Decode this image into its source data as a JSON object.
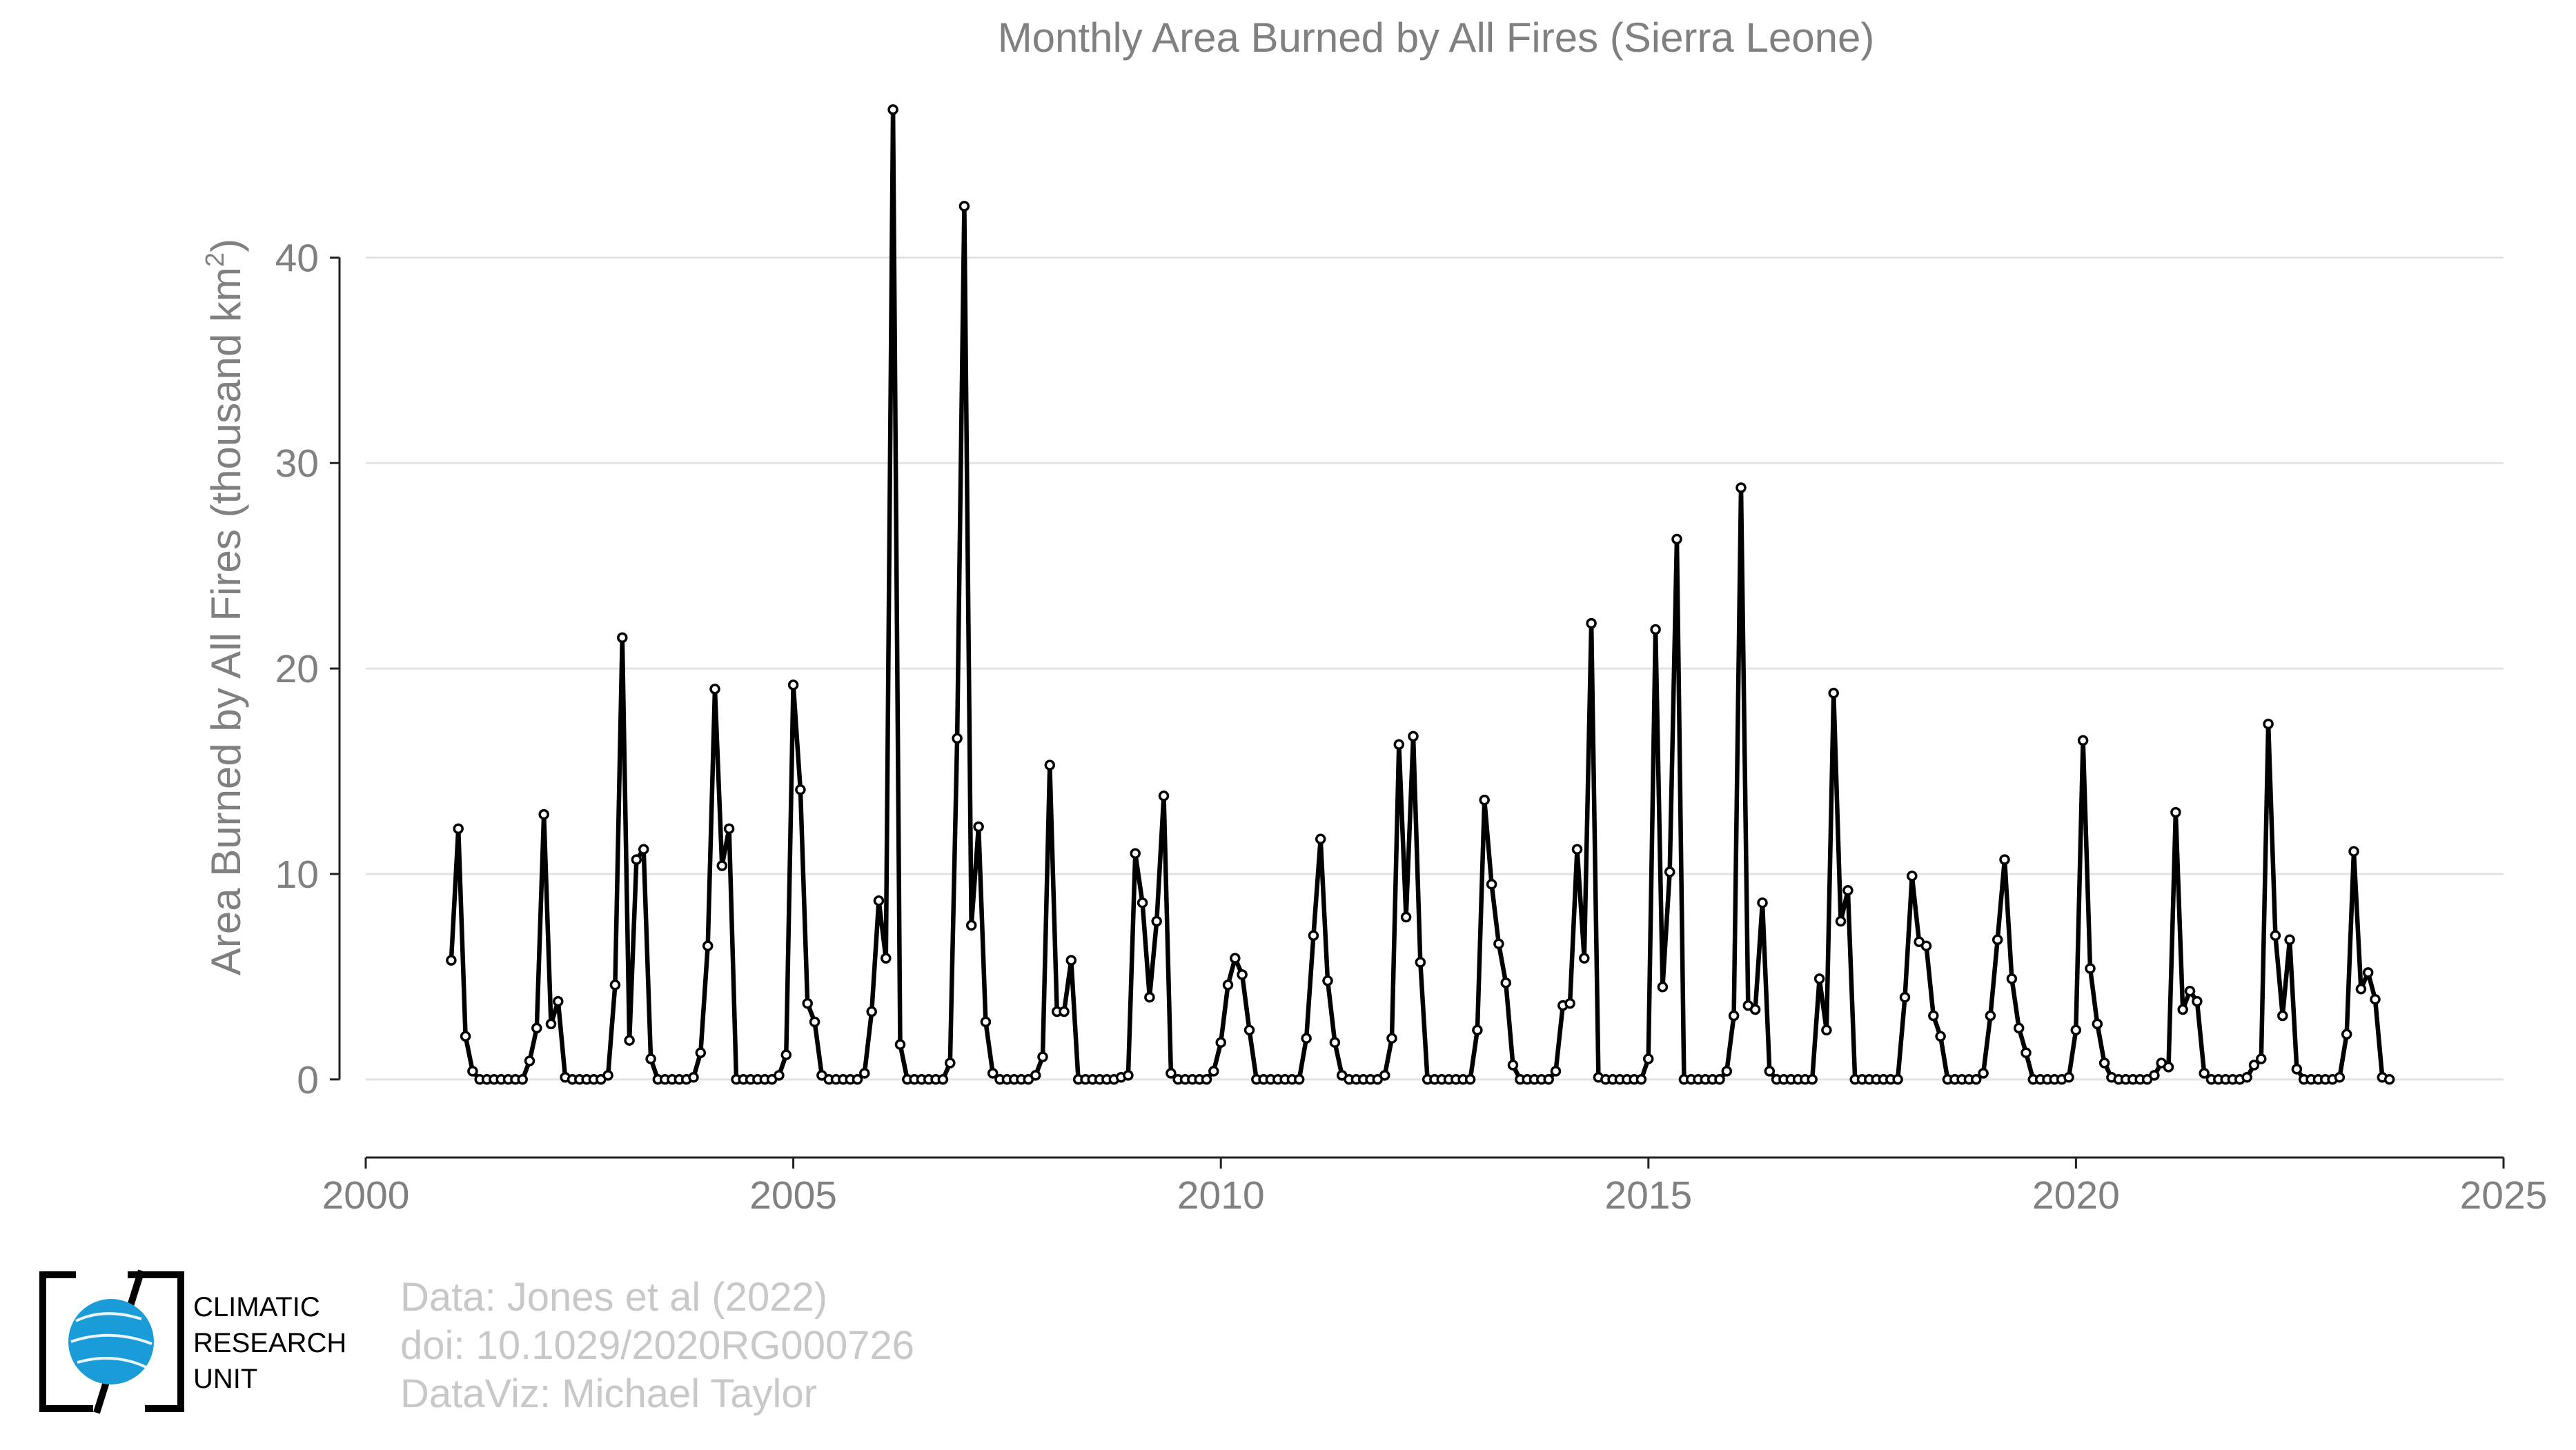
{
  "chart_data": {
    "type": "line",
    "title": "Monthly Area Burned by All Fires (Sierra Leone)",
    "ylabel": "Area Burned by All Fires (thousand km",
    "ylabel_superscript": "2",
    "ylabel_suffix": ")",
    "xlabel": "",
    "xlim": [
      2000,
      2025
    ],
    "ylim": [
      -3.8,
      47.5
    ],
    "x_ticks": [
      2000,
      2005,
      2010,
      2015,
      2020,
      2025
    ],
    "y_ticks": [
      0,
      10,
      20,
      30,
      40
    ],
    "grid": "horizontal",
    "legend": "none",
    "line_color": "#000000",
    "x_start": 2001.0,
    "x_step": 0.08333,
    "series": [
      {
        "values": [
          5.8,
          12.2,
          2.1,
          0.4,
          0.0,
          0.0,
          0.0,
          0.0,
          0.0,
          0.0,
          0.0,
          0.9,
          2.5,
          12.9,
          2.7,
          3.8,
          0.1,
          0.0,
          0.0,
          0.0,
          0.0,
          0.0,
          0.2,
          4.6,
          21.5,
          1.9,
          10.7,
          11.2,
          1.0,
          0.0,
          0.0,
          0.0,
          0.0,
          0.0,
          0.1,
          1.3,
          6.5,
          19.0,
          10.4,
          12.2,
          0.0,
          0.0,
          0.0,
          0.0,
          0.0,
          0.0,
          0.2,
          1.2,
          19.2,
          14.1,
          3.7,
          2.8,
          0.2,
          0.0,
          0.0,
          0.0,
          0.0,
          0.0,
          0.3,
          3.3,
          8.7,
          5.9,
          47.2,
          1.7,
          0.0,
          0.0,
          0.0,
          0.0,
          0.0,
          0.0,
          0.8,
          16.6,
          42.5,
          7.5,
          12.3,
          2.8,
          0.3,
          0.0,
          0.0,
          0.0,
          0.0,
          0.0,
          0.2,
          1.1,
          15.3,
          3.3,
          3.3,
          5.8,
          0.0,
          0.0,
          0.0,
          0.0,
          0.0,
          0.0,
          0.1,
          0.2,
          11.0,
          8.6,
          4.0,
          7.7,
          13.8,
          0.3,
          0.0,
          0.0,
          0.0,
          0.0,
          0.0,
          0.4,
          1.8,
          4.6,
          5.9,
          5.1,
          2.4,
          0.0,
          0.0,
          0.0,
          0.0,
          0.0,
          0.0,
          0.0,
          2.0,
          7.0,
          11.7,
          4.8,
          1.8,
          0.2,
          0.0,
          0.0,
          0.0,
          0.0,
          0.0,
          0.2,
          2.0,
          16.3,
          7.9,
          16.7,
          5.7,
          0.0,
          0.0,
          0.0,
          0.0,
          0.0,
          0.0,
          0.0,
          2.4,
          13.6,
          9.5,
          6.6,
          4.7,
          0.7,
          0.0,
          0.0,
          0.0,
          0.0,
          0.0,
          0.4,
          3.6,
          3.7,
          11.2,
          5.9,
          22.2,
          0.1,
          0.0,
          0.0,
          0.0,
          0.0,
          0.0,
          0.0,
          1.0,
          21.9,
          4.5,
          10.1,
          26.3,
          0.0,
          0.0,
          0.0,
          0.0,
          0.0,
          0.0,
          0.4,
          3.1,
          28.8,
          3.6,
          3.4,
          8.6,
          0.4,
          0.0,
          0.0,
          0.0,
          0.0,
          0.0,
          0.0,
          4.9,
          2.4,
          18.8,
          7.7,
          9.2,
          0.0,
          0.0,
          0.0,
          0.0,
          0.0,
          0.0,
          0.0,
          4.0,
          9.9,
          6.7,
          6.5,
          3.1,
          2.1,
          0.0,
          0.0,
          0.0,
          0.0,
          0.0,
          0.3,
          3.1,
          6.8,
          10.7,
          4.9,
          2.5,
          1.3,
          0.0,
          0.0,
          0.0,
          0.0,
          0.0,
          0.1,
          2.4,
          16.5,
          5.4,
          2.7,
          0.8,
          0.1,
          0.0,
          0.0,
          0.0,
          0.0,
          0.0,
          0.2,
          0.8,
          0.6,
          13.0,
          3.4,
          4.3,
          3.8,
          0.3,
          0.0,
          0.0,
          0.0,
          0.0,
          0.0,
          0.1,
          0.7,
          1.0,
          17.3,
          7.0,
          3.1,
          6.8,
          0.5,
          0.0,
          0.0,
          0.0,
          0.0,
          0.0,
          0.1,
          2.2,
          11.1,
          4.4,
          5.2,
          3.9,
          0.1,
          0.0
        ]
      }
    ]
  },
  "credits": {
    "line1": "Data: Jones et al (2022)",
    "line2": "doi: 10.1029/2020RG000726",
    "line3": "DataViz: Michael Taylor"
  },
  "logo": {
    "line1": "CLIMATIC",
    "line2": "RESEARCH",
    "line3": "UNIT",
    "color": "#1a9cd8"
  }
}
